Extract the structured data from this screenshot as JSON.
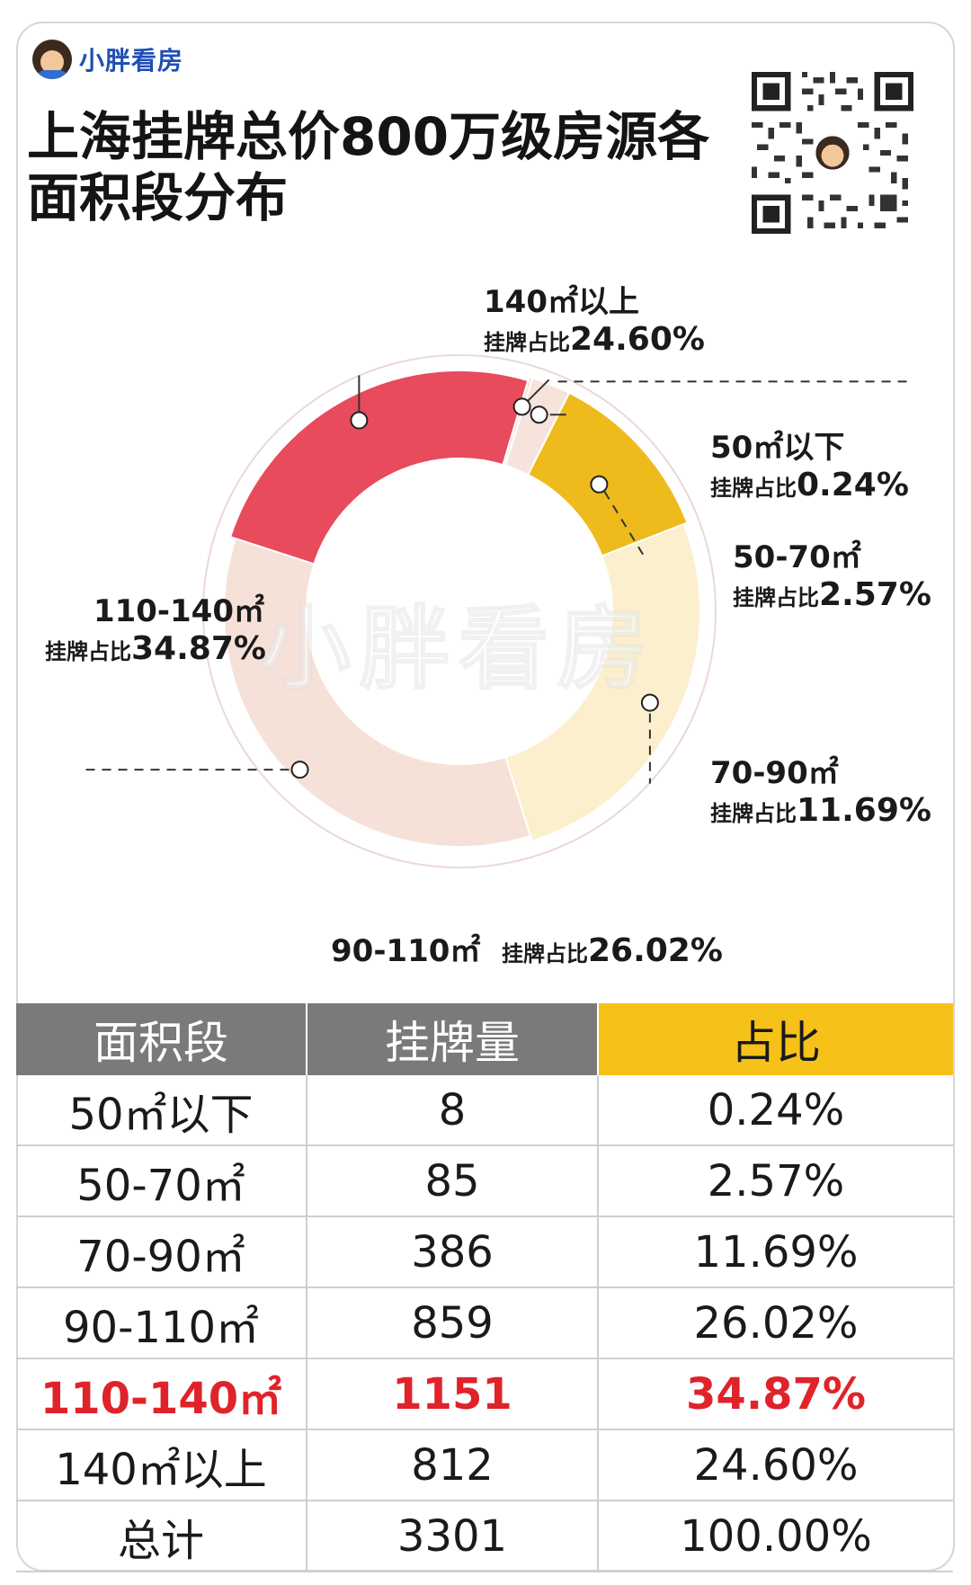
{
  "brand": {
    "name": "小胖看房",
    "logo": "avatar-logo"
  },
  "title": "上海挂牌总价800万级房源各面积段分布",
  "watermark": "小胖看房",
  "colors": {
    "seg_50_below": "#f3dfd6",
    "seg_50_70": "#f6e4dc",
    "seg_70_90": "#efba1b",
    "seg_90_110": "#fbefce",
    "seg_110_140": "#f6e1d8",
    "seg_140_up": "#e84b5c",
    "highlight_row": "#e0232b",
    "header_gray": "#7a7a7a",
    "header_yellow": "#f6c21a"
  },
  "chart_data": {
    "type": "pie",
    "subtype": "donut",
    "title": "上海挂牌总价800万级房源各面积段分布",
    "value_prefix": "挂牌占比",
    "categories": [
      "50㎡以下",
      "50-70㎡",
      "70-90㎡",
      "90-110㎡",
      "110-140㎡",
      "140㎡以上"
    ],
    "values": [
      0.24,
      2.57,
      11.69,
      26.02,
      34.87,
      24.6
    ],
    "value_labels": [
      "0.24%",
      "2.57%",
      "11.69%",
      "26.02%",
      "34.87%",
      "24.60%"
    ],
    "counts": [
      8,
      85,
      386,
      859,
      1151,
      812
    ]
  },
  "table": {
    "headers": [
      "面积段",
      "挂牌量",
      "占比"
    ],
    "rows": [
      [
        "50㎡以下",
        "8",
        "0.24%"
      ],
      [
        "50-70㎡",
        "85",
        "2.57%"
      ],
      [
        "70-90㎡",
        "386",
        "11.69%"
      ],
      [
        "90-110㎡",
        "859",
        "26.02%"
      ],
      [
        "110-140㎡",
        "1151",
        "34.87%"
      ],
      [
        "140㎡以上",
        "812",
        "24.60%"
      ],
      [
        "总计",
        "3301",
        "100.00%"
      ]
    ]
  }
}
